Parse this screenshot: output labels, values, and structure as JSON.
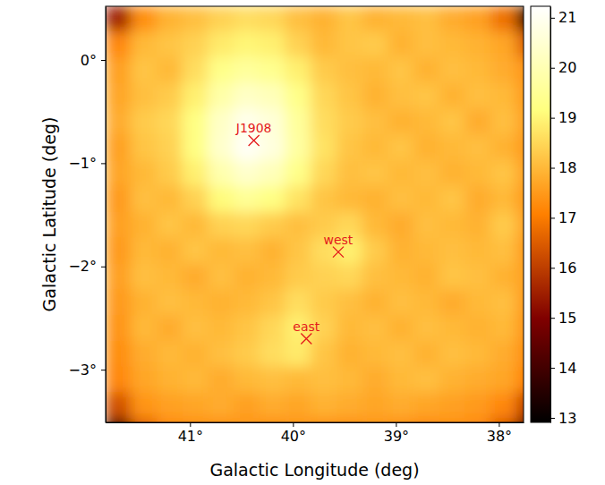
{
  "chart_data": {
    "type": "heatmap",
    "x_label": "Galactic Longitude (deg)",
    "y_label": "Galactic Latitude (deg)",
    "xlim": [
      41.82,
      37.76
    ],
    "ylim": [
      -3.51,
      0.52
    ],
    "xticks": [
      {
        "value": 41,
        "label": "41°"
      },
      {
        "value": 40,
        "label": "40°"
      },
      {
        "value": 39,
        "label": "39°"
      },
      {
        "value": 38,
        "label": "38°"
      }
    ],
    "yticks": [
      {
        "value": 0,
        "label": "0°"
      },
      {
        "value": -1,
        "label": "−1°"
      },
      {
        "value": -2,
        "label": "−2°"
      },
      {
        "value": -3,
        "label": "−3°"
      }
    ],
    "x": [
      41.7,
      41.45,
      41.2,
      40.95,
      40.7,
      40.45,
      40.2,
      39.95,
      39.7,
      39.45,
      39.2,
      38.95,
      38.7,
      38.45,
      38.2,
      37.95,
      37.7
    ],
    "y": [
      0.4,
      0.15,
      -0.1,
      -0.35,
      -0.6,
      -0.85,
      -1.1,
      -1.35,
      -1.6,
      -1.85,
      -2.1,
      -2.35,
      -2.6,
      -2.85,
      -3.1,
      -3.35,
      -3.6
    ],
    "values": [
      [
        15.5,
        17.3,
        17.9,
        18.1,
        18.4,
        18.6,
        18.5,
        18.1,
        17.9,
        18.2,
        17.9,
        18.0,
        18.1,
        17.8,
        17.6,
        16.8,
        13.5
      ],
      [
        17.2,
        18.0,
        18.2,
        18.4,
        18.8,
        19.0,
        18.9,
        18.4,
        18.0,
        18.2,
        18.3,
        17.9,
        18.1,
        18.0,
        17.9,
        17.7,
        16.5
      ],
      [
        17.6,
        18.2,
        18.0,
        18.6,
        19.3,
        19.6,
        19.4,
        18.9,
        18.3,
        18.1,
        18.0,
        18.2,
        17.9,
        18.1,
        18.0,
        17.8,
        17.4
      ],
      [
        17.7,
        18.1,
        18.3,
        18.9,
        19.8,
        20.3,
        20.1,
        19.3,
        18.5,
        18.2,
        17.9,
        18.1,
        18.2,
        17.9,
        18.1,
        18.0,
        17.5
      ],
      [
        17.8,
        18.3,
        18.5,
        19.2,
        20.3,
        20.9,
        20.6,
        19.6,
        18.6,
        18.3,
        18.1,
        17.9,
        18.0,
        18.2,
        17.8,
        18.1,
        17.6
      ],
      [
        17.6,
        18.2,
        18.4,
        19.2,
        20.4,
        21.1,
        20.7,
        19.7,
        18.7,
        18.2,
        18.0,
        18.2,
        17.9,
        18.0,
        18.1,
        17.9,
        17.5
      ],
      [
        17.7,
        18.0,
        18.3,
        18.9,
        19.9,
        20.4,
        20.1,
        19.3,
        18.5,
        18.1,
        18.2,
        18.0,
        18.1,
        17.9,
        18.0,
        18.2,
        17.6
      ],
      [
        17.5,
        18.1,
        18.0,
        18.4,
        19.1,
        19.5,
        19.2,
        18.7,
        18.2,
        18.0,
        17.9,
        18.1,
        18.0,
        18.2,
        17.8,
        18.0,
        17.5
      ],
      [
        17.6,
        17.9,
        18.2,
        18.0,
        18.4,
        18.5,
        18.3,
        18.1,
        18.3,
        18.5,
        18.0,
        17.8,
        18.1,
        18.0,
        17.9,
        18.3,
        17.6
      ],
      [
        17.5,
        18.0,
        17.9,
        18.2,
        18.0,
        18.1,
        17.9,
        18.2,
        18.6,
        18.9,
        18.3,
        17.9,
        18.0,
        18.1,
        18.0,
        18.1,
        17.5
      ],
      [
        17.6,
        18.1,
        18.0,
        17.8,
        18.1,
        17.9,
        18.0,
        18.3,
        18.4,
        18.5,
        18.1,
        18.0,
        17.9,
        18.2,
        18.1,
        17.9,
        17.6
      ],
      [
        17.5,
        17.9,
        18.1,
        18.0,
        17.9,
        18.0,
        18.2,
        18.6,
        18.3,
        18.1,
        17.9,
        18.1,
        18.0,
        17.8,
        18.0,
        18.1,
        17.5
      ],
      [
        17.4,
        18.0,
        17.8,
        18.1,
        18.0,
        18.2,
        18.5,
        18.9,
        18.4,
        18.0,
        18.1,
        17.9,
        18.1,
        18.0,
        17.9,
        18.0,
        17.4
      ],
      [
        17.3,
        17.8,
        18.0,
        17.9,
        18.1,
        18.3,
        18.6,
        18.8,
        18.2,
        17.9,
        18.0,
        18.1,
        17.9,
        18.1,
        18.0,
        17.8,
        17.3
      ],
      [
        17.2,
        17.7,
        17.9,
        18.0,
        17.8,
        18.0,
        18.1,
        18.0,
        18.1,
        18.0,
        17.8,
        18.0,
        18.1,
        17.9,
        17.8,
        17.7,
        17.1
      ],
      [
        16.3,
        17.4,
        17.6,
        17.7,
        17.8,
        17.6,
        17.8,
        17.7,
        17.9,
        17.8,
        17.7,
        17.8,
        17.7,
        17.6,
        17.5,
        17.2,
        16.0
      ],
      [
        13.8,
        16.5,
        17.2,
        17.3,
        17.3,
        17.4,
        17.3,
        17.4,
        17.3,
        17.3,
        17.4,
        17.3,
        17.2,
        17.3,
        17.2,
        16.4,
        13.8
      ]
    ],
    "colorbar": {
      "lim": [
        12.91,
        21.23
      ],
      "ticks": [
        13,
        14,
        15,
        16,
        17,
        18,
        19,
        20,
        21
      ]
    },
    "marker": "x",
    "annotations": [
      {
        "text": "J1908",
        "x": 40.38,
        "y": -0.78
      },
      {
        "text": "west",
        "x": 39.56,
        "y": -1.86
      },
      {
        "text": "east",
        "x": 39.87,
        "y": -2.7
      }
    ]
  }
}
